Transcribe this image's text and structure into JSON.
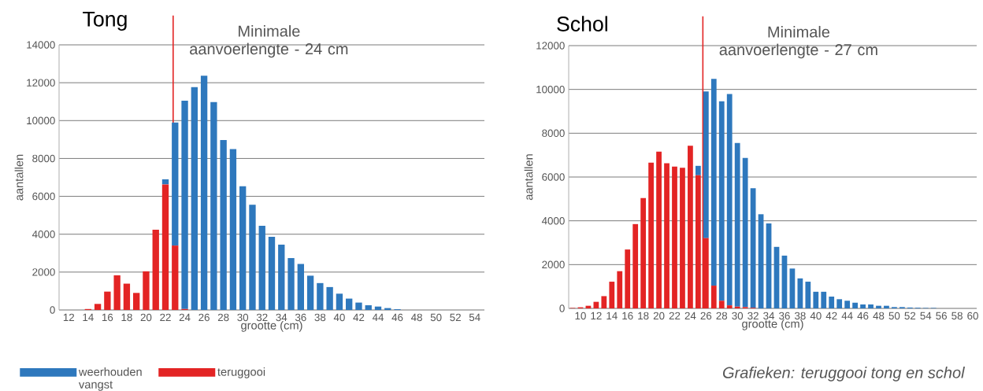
{
  "chart_data": [
    {
      "type": "bar",
      "title": "Tong",
      "xlabel": "grootte (cm)",
      "ylabel": "aantallen",
      "stacked": true,
      "grid": "y",
      "legend": "bottom left",
      "x": [
        12,
        13,
        14,
        15,
        16,
        17,
        18,
        19,
        20,
        21,
        22,
        23,
        24,
        25,
        26,
        27,
        28,
        29,
        30,
        31,
        32,
        33,
        34,
        35,
        36,
        37,
        38,
        39,
        40,
        41,
        42,
        43,
        44,
        45,
        46,
        47,
        48,
        49,
        50,
        51,
        52,
        53,
        54
      ],
      "xlim": [
        11,
        55
      ],
      "xticks": [
        12,
        14,
        16,
        18,
        20,
        22,
        24,
        26,
        28,
        30,
        32,
        34,
        36,
        38,
        40,
        42,
        44,
        46,
        48,
        50,
        52,
        54
      ],
      "ylim": [
        0,
        14000
      ],
      "yticks": [
        0,
        2000,
        4000,
        6000,
        8000,
        10000,
        12000,
        14000
      ],
      "series": [
        {
          "name": "teruggooi",
          "color": "#e32424",
          "values": [
            0,
            0,
            50,
            320,
            970,
            1830,
            1390,
            900,
            2040,
            4240,
            6630,
            3400,
            50,
            0,
            0,
            0,
            0,
            0,
            0,
            0,
            0,
            0,
            0,
            0,
            0,
            0,
            0,
            0,
            0,
            0,
            0,
            0,
            0,
            0,
            0,
            0,
            0,
            0,
            0,
            0,
            0,
            0,
            0
          ]
        },
        {
          "name": "weerhouden vangst",
          "color": "#2e78bd",
          "values": [
            0,
            0,
            0,
            0,
            0,
            0,
            0,
            0,
            0,
            0,
            270,
            6500,
            11000,
            11770,
            12370,
            10980,
            8970,
            8500,
            6530,
            5560,
            4450,
            3860,
            3450,
            2740,
            2430,
            1810,
            1420,
            1210,
            860,
            600,
            390,
            250,
            180,
            100,
            40,
            null,
            null,
            0,
            0,
            0,
            0,
            0,
            0
          ]
        }
      ],
      "ref_lines": [
        {
          "axis": "x",
          "value": 22.8,
          "label": "Minimale aanvoerlengte - 24 cm",
          "color": "#e32424"
        }
      ]
    },
    {
      "type": "bar",
      "title": "Schol",
      "xlabel": "grootte (cm)",
      "ylabel": "aantallen",
      "stacked": true,
      "grid": "y",
      "x": [
        9,
        10,
        11,
        12,
        13,
        14,
        15,
        16,
        17,
        18,
        19,
        20,
        21,
        22,
        23,
        24,
        25,
        26,
        27,
        28,
        29,
        30,
        31,
        32,
        33,
        34,
        35,
        36,
        37,
        38,
        39,
        40,
        41,
        42,
        43,
        44,
        45,
        46,
        47,
        48,
        49,
        50,
        51,
        52,
        53,
        54,
        55,
        56,
        57,
        58,
        59,
        60
      ],
      "xlim": [
        8.5,
        60.5
      ],
      "xticks": [
        10,
        12,
        14,
        16,
        18,
        20,
        22,
        24,
        26,
        28,
        30,
        32,
        34,
        36,
        38,
        40,
        42,
        44,
        46,
        48,
        50,
        52,
        54,
        56,
        58,
        60
      ],
      "ylim": [
        0,
        12000
      ],
      "yticks": [
        0,
        2000,
        4000,
        6000,
        8000,
        10000,
        12000
      ],
      "series": [
        {
          "color": "#e32424",
          "values": [
            20,
            50,
            120,
            300,
            560,
            1220,
            1700,
            2690,
            3850,
            5040,
            6660,
            7160,
            6630,
            6480,
            6420,
            7430,
            6080,
            3210,
            1040,
            350,
            140,
            80,
            60,
            30,
            0,
            0,
            0,
            0,
            0,
            0,
            0,
            0,
            0,
            0,
            0,
            0,
            0,
            0,
            0,
            0,
            0,
            0,
            0,
            0,
            0,
            0,
            0,
            0,
            0,
            0,
            0,
            0
          ]
        },
        {
          "color": "#2e78bd",
          "values": [
            0,
            0,
            0,
            0,
            0,
            0,
            0,
            0,
            0,
            0,
            0,
            0,
            0,
            0,
            0,
            0,
            430,
            6700,
            9440,
            9110,
            9650,
            7470,
            6810,
            5460,
            4300,
            3880,
            2810,
            2410,
            1820,
            1370,
            1220,
            760,
            760,
            540,
            420,
            350,
            260,
            180,
            180,
            120,
            120,
            60,
            60,
            40,
            30,
            20,
            20,
            0,
            0,
            0,
            0,
            0
          ]
        }
      ],
      "ref_lines": [
        {
          "axis": "x",
          "value": 25.6,
          "label": "Minimale aanvoerlengte - 27 cm",
          "color": "#e32424"
        }
      ],
      "annotations": [
        "Grafieken: teruggooi tong en schol"
      ]
    }
  ]
}
